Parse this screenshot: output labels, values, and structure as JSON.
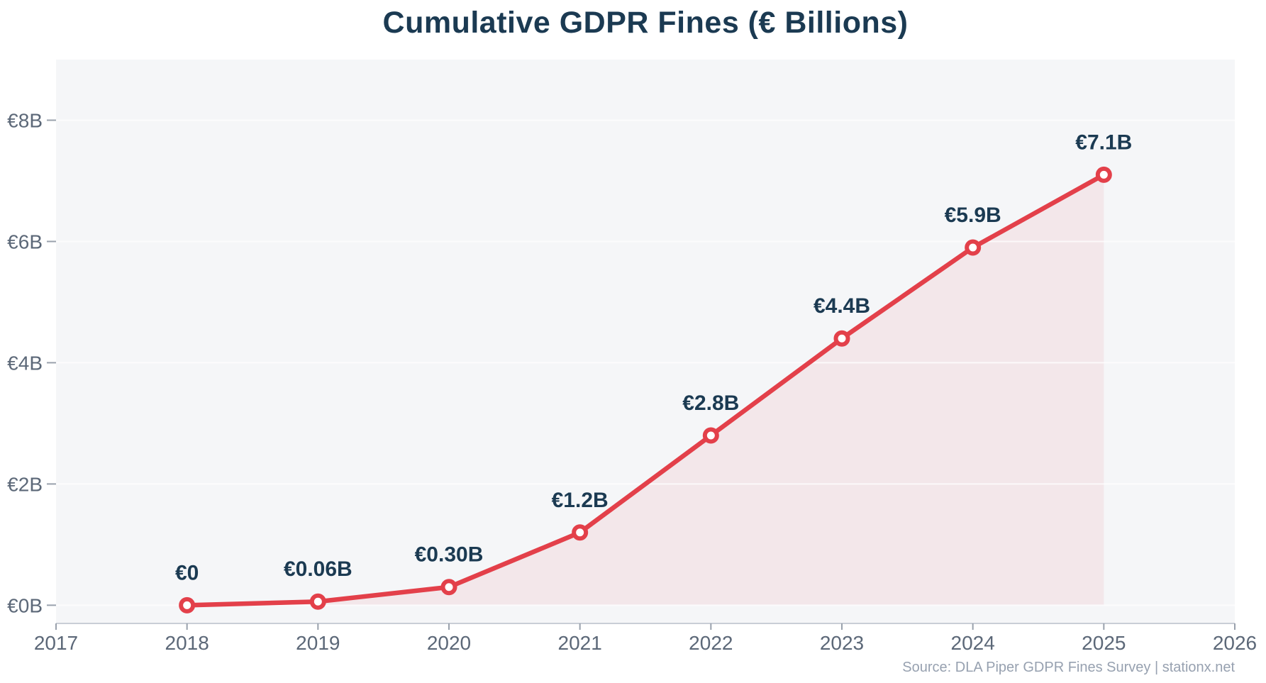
{
  "title": "Cumulative GDPR Fines (€ Billions)",
  "source": "Source: DLA Piper GDPR Fines Survey | stationx.net",
  "colors": {
    "page_bg": "#ffffff",
    "plot_bg": "#f5f6f8",
    "line": "#e3404a",
    "marker_fill": "#ffffff",
    "area_fill": "rgba(227,64,74,0.08)",
    "grid": "#ffffff",
    "spine": "#c9ced6",
    "tick_mark": "#99a1ac",
    "tick_label": "#5c6878",
    "data_label": "#1b3a52",
    "title_color": "#1b3a52",
    "source_color": "#97a1b0"
  },
  "chart_data": {
    "type": "area",
    "title": "Cumulative GDPR Fines (€ Billions)",
    "x": [
      2018,
      2019,
      2020,
      2021,
      2022,
      2023,
      2024,
      2025
    ],
    "values": [
      0,
      0.06,
      0.3,
      1.2,
      2.8,
      4.4,
      5.9,
      7.1
    ],
    "point_labels": [
      "€0",
      "€0.06B",
      "€0.30B",
      "€1.2B",
      "€2.8B",
      "€4.4B",
      "€5.9B",
      "€7.1B"
    ],
    "xlabel": "",
    "ylabel": "",
    "xlim": [
      2017,
      2026
    ],
    "ylim": [
      -0.3,
      9.0
    ],
    "xticks": [
      2017,
      2018,
      2019,
      2020,
      2021,
      2022,
      2023,
      2024,
      2025,
      2026
    ],
    "xtick_labels": [
      "2017",
      "2018",
      "2019",
      "2020",
      "2021",
      "2022",
      "2023",
      "2024",
      "2025",
      "2026"
    ],
    "yticks": [
      0,
      2,
      4,
      6,
      8
    ],
    "ytick_labels": [
      "€0B",
      "€2B",
      "€4B",
      "€6B",
      "€8B"
    ],
    "grid": "horizontal",
    "legend": "none",
    "source": "Source: DLA Piper GDPR Fines Survey | stationx.net"
  }
}
